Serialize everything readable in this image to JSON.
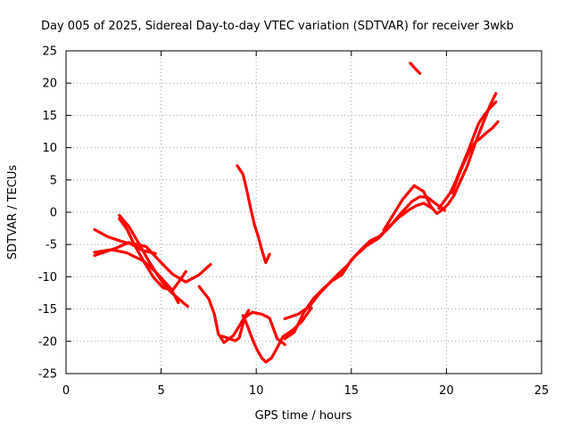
{
  "chart_data": {
    "type": "line",
    "title": "Day 005 of 2025, Sidereal Day-to-day VTEC variation (SDTVAR) for receiver 3wkb",
    "xlabel": "GPS time / hours",
    "ylabel": "SDTVAR / TECUs",
    "xlim": [
      0,
      25
    ],
    "ylim": [
      -25,
      25
    ],
    "xticks": [
      "0",
      "5",
      "10",
      "15",
      "20",
      "25"
    ],
    "yticks": [
      "25",
      "20",
      "15",
      "10",
      "5",
      "0",
      "-5",
      "-10",
      "-15",
      "-20",
      "-25"
    ],
    "grid": true,
    "legend": "none",
    "color": "#ff0000",
    "series": [
      {
        "x": [
          1.5,
          2.2,
          2.8,
          3.4,
          4.0,
          4.7
        ],
        "y": [
          -2.7,
          -3.8,
          -4.4,
          -4.9,
          -5.9,
          -6.4
        ]
      },
      {
        "x": [
          1.5,
          2.0,
          2.6,
          3.3,
          4.2,
          5.0,
          5.6,
          6.3,
          7.0,
          7.6
        ],
        "y": [
          -6.7,
          -6.2,
          -5.6,
          -4.7,
          -5.3,
          -7.8,
          -9.6,
          -10.8,
          -9.7,
          -8.1
        ]
      },
      {
        "x": [
          1.5,
          2.4,
          3.2,
          4.1,
          4.8,
          5.5,
          5.9
        ],
        "y": [
          -6.2,
          -5.8,
          -6.3,
          -7.6,
          -9.5,
          -11.8,
          -14.0
        ]
      },
      {
        "x": [
          2.8,
          3.3,
          3.8,
          4.3,
          4.8,
          5.2,
          5.6,
          6.0,
          6.4
        ],
        "y": [
          -0.5,
          -2.2,
          -4.7,
          -7.3,
          -9.7,
          -11.4,
          -12.6,
          -13.6,
          -14.6
        ]
      },
      {
        "x": [
          2.8,
          3.2,
          3.6,
          4.1,
          4.6,
          5.1,
          5.6,
          6.0,
          6.3
        ],
        "y": [
          -1.0,
          -2.6,
          -5.1,
          -7.7,
          -10.1,
          -11.7,
          -12.1,
          -10.5,
          -9.2
        ]
      },
      {
        "x": [
          7.0,
          7.5,
          7.8,
          8.0,
          8.3,
          8.8,
          9.2,
          9.6
        ],
        "y": [
          -11.5,
          -13.4,
          -15.8,
          -18.8,
          -20.2,
          -19.1,
          -17.2,
          -15.2
        ]
      },
      {
        "x": [
          8.2,
          8.6,
          8.9,
          9.1,
          9.4,
          9.8,
          10.3,
          10.7,
          11.1,
          11.5
        ],
        "y": [
          -19.2,
          -19.6,
          -19.9,
          -19.5,
          -16.3,
          -15.5,
          -15.8,
          -16.4,
          -19.6,
          -20.5
        ]
      },
      {
        "x": [
          9.3,
          9.5,
          9.7,
          9.9,
          10.1,
          10.3,
          10.5,
          10.8,
          11.1,
          11.4,
          11.9,
          12.4,
          12.9
        ],
        "y": [
          -16.0,
          -17.3,
          -18.9,
          -20.4,
          -21.6,
          -22.6,
          -23.2,
          -22.6,
          -21.0,
          -19.3,
          -18.3,
          -16.9,
          -14.8
        ]
      },
      {
        "x": [
          11.5,
          12.0,
          12.5,
          13.0,
          13.5,
          14.0,
          14.5,
          15.0,
          15.5,
          16.0,
          16.5,
          17.0,
          17.5,
          18.0,
          18.4,
          18.8,
          19.2
        ],
        "y": [
          -19.6,
          -18.6,
          -15.5,
          -13.4,
          -11.9,
          -10.6,
          -9.7,
          -7.4,
          -5.8,
          -4.4,
          -3.7,
          -2.2,
          -0.8,
          0.3,
          1.0,
          1.4,
          0.7
        ]
      },
      {
        "x": [
          11.5,
          12.2,
          12.8,
          13.3,
          13.8,
          14.3,
          14.8,
          15.2,
          15.8,
          16.4,
          17.0,
          17.6,
          18.2,
          18.6,
          19.0,
          19.4,
          19.9
        ],
        "y": [
          -16.5,
          -15.8,
          -14.6,
          -12.7,
          -11.1,
          -9.6,
          -8.2,
          -6.8,
          -5.2,
          -4.1,
          -2.3,
          -0.2,
          1.7,
          2.4,
          2.3,
          1.4,
          0.3
        ]
      },
      {
        "x": [
          9.0,
          9.3,
          9.5,
          9.7,
          9.9,
          10.1,
          10.3,
          10.5,
          10.7
        ],
        "y": [
          7.2,
          5.9,
          3.5,
          0.7,
          -1.9,
          -3.7,
          -5.9,
          -7.8,
          -6.5
        ]
      },
      {
        "x": [
          16.7,
          17.2,
          17.7,
          18.3,
          18.8,
          19.2,
          19.5,
          19.8,
          20.1,
          20.4,
          20.7,
          21.1,
          21.5,
          21.9,
          22.3,
          22.6
        ],
        "y": [
          -2.8,
          -0.4,
          2.0,
          4.1,
          3.2,
          0.8,
          -0.2,
          0.4,
          1.3,
          2.6,
          4.6,
          7.2,
          10.6,
          13.6,
          16.6,
          18.4
        ]
      },
      {
        "x": [
          19.6,
          19.9,
          20.2,
          20.5,
          20.8,
          21.1,
          21.4,
          21.7,
          22.0,
          22.3,
          22.6
        ],
        "y": [
          0.6,
          1.8,
          3.0,
          4.9,
          7.1,
          9.2,
          11.5,
          13.8,
          15.1,
          16.2,
          17.1
        ]
      },
      {
        "x": [
          20.3,
          20.6,
          20.9,
          21.2,
          21.5,
          21.8,
          22.1,
          22.4,
          22.7
        ],
        "y": [
          3.0,
          5.4,
          7.5,
          9.4,
          10.8,
          11.5,
          12.3,
          13.0,
          14.0
        ]
      },
      {
        "x": [
          18.1,
          18.4,
          18.6
        ],
        "y": [
          23.1,
          22.1,
          21.5
        ]
      }
    ]
  }
}
